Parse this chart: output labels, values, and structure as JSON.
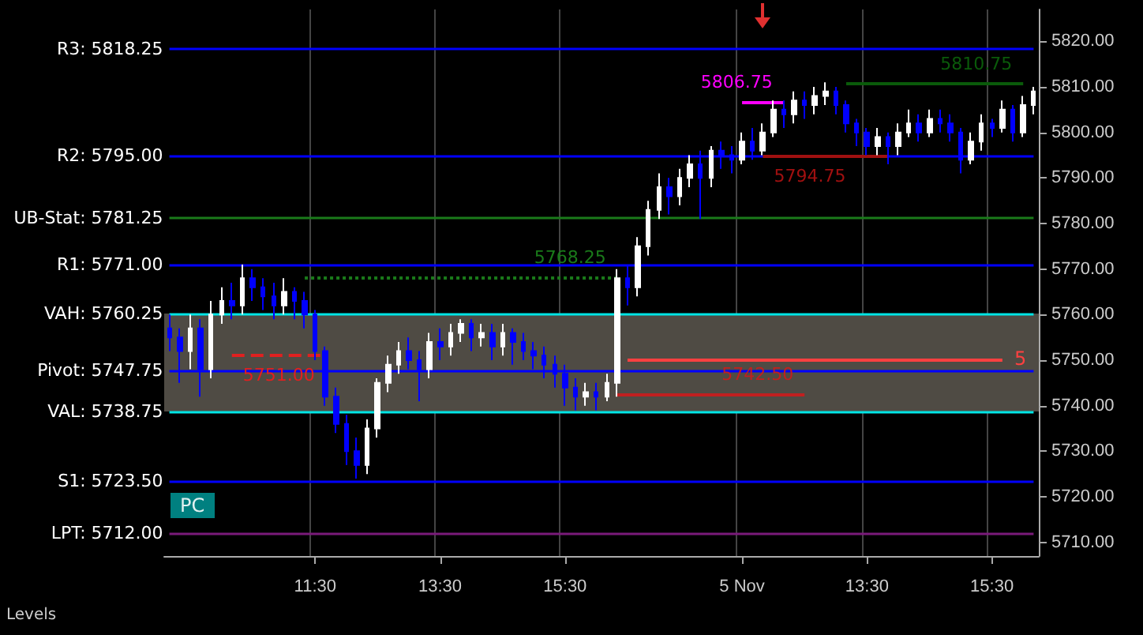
{
  "chart_data": {
    "type": "candlestick",
    "categories": [
      null,
      null,
      null,
      null,
      null,
      null,
      null,
      null,
      null,
      null,
      null,
      null,
      null,
      null,
      "11:30",
      null,
      null,
      null,
      null,
      null,
      null,
      null,
      null,
      null,
      null,
      null,
      "13:30",
      null,
      null,
      null,
      null,
      null,
      null,
      null,
      null,
      null,
      null,
      null,
      "15:30",
      null,
      null,
      null,
      null,
      null,
      null,
      null,
      null,
      null,
      null,
      null,
      null,
      null,
      null,
      null,
      null,
      "5 Nov",
      null,
      null,
      null,
      null,
      null,
      null,
      null,
      null,
      null,
      null,
      null,
      "13:30",
      null,
      null,
      null,
      null,
      null,
      null,
      null,
      null,
      null,
      null,
      null,
      "15:30",
      null,
      null,
      null,
      null
    ],
    "ohlc": [
      [
        5757,
        5760,
        5752,
        5755
      ],
      [
        5755,
        5757,
        5745,
        5752
      ],
      [
        5752,
        5760,
        5748,
        5757
      ],
      [
        5757,
        5759,
        5742,
        5748
      ],
      [
        5748,
        5763,
        5746,
        5760
      ],
      [
        5760,
        5766,
        5758,
        5763
      ],
      [
        5763,
        5767,
        5759,
        5762
      ],
      [
        5762,
        5771,
        5760,
        5768
      ],
      [
        5768,
        5770,
        5763,
        5766
      ],
      [
        5766,
        5768,
        5761,
        5764
      ],
      [
        5764,
        5767,
        5759,
        5762
      ],
      [
        5762,
        5768,
        5760,
        5765
      ],
      [
        5765,
        5766,
        5759,
        5763
      ],
      [
        5763,
        5765,
        5757,
        5760
      ],
      [
        5760,
        5761,
        5750,
        5752
      ],
      [
        5752,
        5753,
        5740,
        5742
      ],
      [
        5742,
        5744,
        5734,
        5736
      ],
      [
        5736,
        5738,
        5727,
        5730
      ],
      [
        5730,
        5733,
        5724,
        5727
      ],
      [
        5727,
        5737,
        5725,
        5735
      ],
      [
        5735,
        5746,
        5733,
        5745
      ],
      [
        5745,
        5751,
        5743,
        5749
      ],
      [
        5749,
        5754,
        5747,
        5752
      ],
      [
        5752,
        5755,
        5748,
        5750
      ],
      [
        5750,
        5752,
        5741,
        5748
      ],
      [
        5748,
        5756,
        5746,
        5754
      ],
      [
        5754,
        5757,
        5750,
        5753
      ],
      [
        5753,
        5758,
        5751,
        5756
      ],
      [
        5756,
        5759,
        5754,
        5758
      ],
      [
        5758,
        5759,
        5752,
        5755
      ],
      [
        5755,
        5758,
        5753,
        5756
      ],
      [
        5756,
        5758,
        5750,
        5753
      ],
      [
        5753,
        5758,
        5751,
        5756
      ],
      [
        5756,
        5757,
        5749,
        5754
      ],
      [
        5754,
        5756,
        5750,
        5752
      ],
      [
        5752,
        5754,
        5748,
        5751
      ],
      [
        5751,
        5753,
        5746,
        5749
      ],
      [
        5749,
        5751,
        5744,
        5747
      ],
      [
        5747,
        5749,
        5740,
        5744
      ],
      [
        5744,
        5746,
        5739,
        5742
      ],
      [
        5742,
        5745,
        5740,
        5743
      ],
      [
        5743,
        5745,
        5739,
        5742
      ],
      [
        5742,
        5747,
        5741,
        5745
      ],
      [
        5745,
        5770,
        5742,
        5768
      ],
      [
        5768,
        5771,
        5762,
        5766
      ],
      [
        5766,
        5777,
        5764,
        5775
      ],
      [
        5775,
        5785,
        5773,
        5783
      ],
      [
        5783,
        5791,
        5781,
        5788
      ],
      [
        5788,
        5790,
        5782,
        5786
      ],
      [
        5786,
        5792,
        5784,
        5790
      ],
      [
        5790,
        5795,
        5788,
        5793
      ],
      [
        5793,
        5796,
        5781,
        5790
      ],
      [
        5790,
        5797,
        5788,
        5796
      ],
      [
        5796,
        5798,
        5792,
        5795
      ],
      [
        5795,
        5797,
        5791,
        5794
      ],
      [
        5794,
        5800,
        5793,
        5798
      ],
      [
        5798,
        5801,
        5794,
        5796
      ],
      [
        5796,
        5802,
        5795,
        5800
      ],
      [
        5800,
        5807,
        5799,
        5805
      ],
      [
        5805,
        5807,
        5801,
        5804
      ],
      [
        5804,
        5809,
        5802,
        5807
      ],
      [
        5807,
        5809,
        5803,
        5806
      ],
      [
        5806,
        5810,
        5804,
        5808
      ],
      [
        5808,
        5811,
        5806,
        5809
      ],
      [
        5809,
        5810,
        5804,
        5806
      ],
      [
        5806,
        5807,
        5800,
        5802
      ],
      [
        5802,
        5803,
        5797,
        5800
      ],
      [
        5800,
        5801,
        5795,
        5797
      ],
      [
        5797,
        5801,
        5795,
        5799
      ],
      [
        5799,
        5800,
        5793,
        5797
      ],
      [
        5797,
        5802,
        5795,
        5800
      ],
      [
        5800,
        5805,
        5799,
        5802
      ],
      [
        5802,
        5804,
        5798,
        5800
      ],
      [
        5800,
        5805,
        5799,
        5803
      ],
      [
        5803,
        5805,
        5800,
        5802
      ],
      [
        5802,
        5804,
        5798,
        5800
      ],
      [
        5800,
        5801,
        5791,
        5794
      ],
      [
        5794,
        5800,
        5793,
        5798
      ],
      [
        5798,
        5804,
        5796,
        5802
      ],
      [
        5802,
        5803,
        5799,
        5801
      ],
      [
        5801,
        5807,
        5800,
        5805
      ],
      [
        5805,
        5806,
        5798,
        5800
      ],
      [
        5800,
        5808,
        5799,
        5806
      ],
      [
        5806,
        5810,
        5804,
        5809
      ]
    ],
    "colors": [
      "#0000ff",
      "#0000ff",
      "#ffffff",
      "#0000ff",
      "#ffffff",
      "#ffffff",
      "#0000ff",
      "#ffffff",
      "#0000ff",
      "#0000ff",
      "#0000ff",
      "#ffffff",
      "#0000ff",
      "#0000ff",
      "#0000ff",
      "#0000ff",
      "#0000ff",
      "#0000ff",
      "#0000ff",
      "#ffffff",
      "#ffffff",
      "#ffffff",
      "#ffffff",
      "#0000ff",
      "#0000ff",
      "#ffffff",
      "#0000ff",
      "#ffffff",
      "#ffffff",
      "#0000ff",
      "#ffffff",
      "#0000ff",
      "#ffffff",
      "#0000ff",
      "#0000ff",
      "#0000ff",
      "#0000ff",
      "#0000ff",
      "#0000ff",
      "#0000ff",
      "#ffffff",
      "#0000ff",
      "#ffffff",
      "#ffffff",
      "#0000ff",
      "#ffffff",
      "#ffffff",
      "#ffffff",
      "#0000ff",
      "#ffffff",
      "#ffffff",
      "#0000ff",
      "#ffffff",
      "#0000ff",
      "#0000ff",
      "#ffffff",
      "#0000ff",
      "#ffffff",
      "#ffffff",
      "#0000ff",
      "#ffffff",
      "#0000ff",
      "#ffffff",
      "#ffffff",
      "#0000ff",
      "#0000ff",
      "#0000ff",
      "#0000ff",
      "#ffffff",
      "#0000ff",
      "#ffffff",
      "#ffffff",
      "#0000ff",
      "#ffffff",
      "#0000ff",
      "#0000ff",
      "#0000ff",
      "#ffffff",
      "#ffffff",
      "#0000ff",
      "#ffffff",
      "#0000ff",
      "#ffffff",
      "#ffffff"
    ],
    "ylim": [
      5707,
      5827
    ],
    "yticks": [
      {
        "value": 5710,
        "label": "5710.00"
      },
      {
        "value": 5720,
        "label": "5720.00"
      },
      {
        "value": 5730,
        "label": "5730.00"
      },
      {
        "value": 5740,
        "label": "5740.00"
      },
      {
        "value": 5750,
        "label": "5750.00"
      },
      {
        "value": 5760,
        "label": "5760.00"
      },
      {
        "value": 5770,
        "label": "5770.00"
      },
      {
        "value": 5780,
        "label": "5780.00"
      },
      {
        "value": 5790,
        "label": "5790.00"
      },
      {
        "value": 5800,
        "label": "5800.00"
      },
      {
        "value": 5810,
        "label": "5810.00"
      },
      {
        "value": 5820,
        "label": "5820.00"
      }
    ],
    "grid": "x",
    "bands": [
      {
        "axis": "y",
        "from": 5738.75,
        "to": 5760.25,
        "color": "#4f4b44"
      }
    ],
    "ref_lines": [
      {
        "axis": "y",
        "value": 5818.25,
        "label": "R3: 5818.25",
        "color": "#0000ff"
      },
      {
        "axis": "y",
        "value": 5795,
        "label": "R2: 5795.00",
        "color": "#0000ff"
      },
      {
        "axis": "y",
        "value": 5781.25,
        "label": "UB-Stat: 5781.25",
        "color": "#1a7a1a"
      },
      {
        "axis": "y",
        "value": 5771,
        "label": "R1: 5771.00",
        "color": "#0000ff"
      },
      {
        "axis": "y",
        "value": 5760.25,
        "label": "VAH: 5760.25",
        "color": "#00e5e5"
      },
      {
        "axis": "y",
        "value": 5747.75,
        "label": "Pivot: 5747.75",
        "color": "#0000ff"
      },
      {
        "axis": "y",
        "value": 5738.75,
        "label": "VAL: 5738.75",
        "color": "#00e5e5"
      },
      {
        "axis": "y",
        "value": 5723.5,
        "label": "S1: 5723.50",
        "color": "#0000ff"
      },
      {
        "axis": "y",
        "value": 5712,
        "label": "LPT: 5712.00",
        "color": "#7a1a7a"
      },
      {
        "axis": "y",
        "value": 5768.25,
        "label": "5768.25",
        "color": "#1a7a1a",
        "line_style": "dotted"
      },
      {
        "axis": "y",
        "value": 5751,
        "label": "5751.00",
        "color": "#e02020",
        "line_style": "dashed"
      },
      {
        "axis": "y",
        "value": 5742.5,
        "label": "5742.50",
        "color": "#c02020"
      },
      {
        "axis": "y",
        "value": 5750,
        "color": "#ff4040"
      },
      {
        "axis": "y",
        "value": 5794.75,
        "label": "5794.75",
        "color": "#a01010"
      },
      {
        "axis": "y",
        "value": 5806.75,
        "label": "5806.75",
        "color": "#ff00ff"
      },
      {
        "axis": "y",
        "value": 5810.75,
        "label": "5810.75",
        "color": "#0a5a0a"
      }
    ],
    "annotations": [
      "Levels",
      "PC",
      "5"
    ]
  }
}
